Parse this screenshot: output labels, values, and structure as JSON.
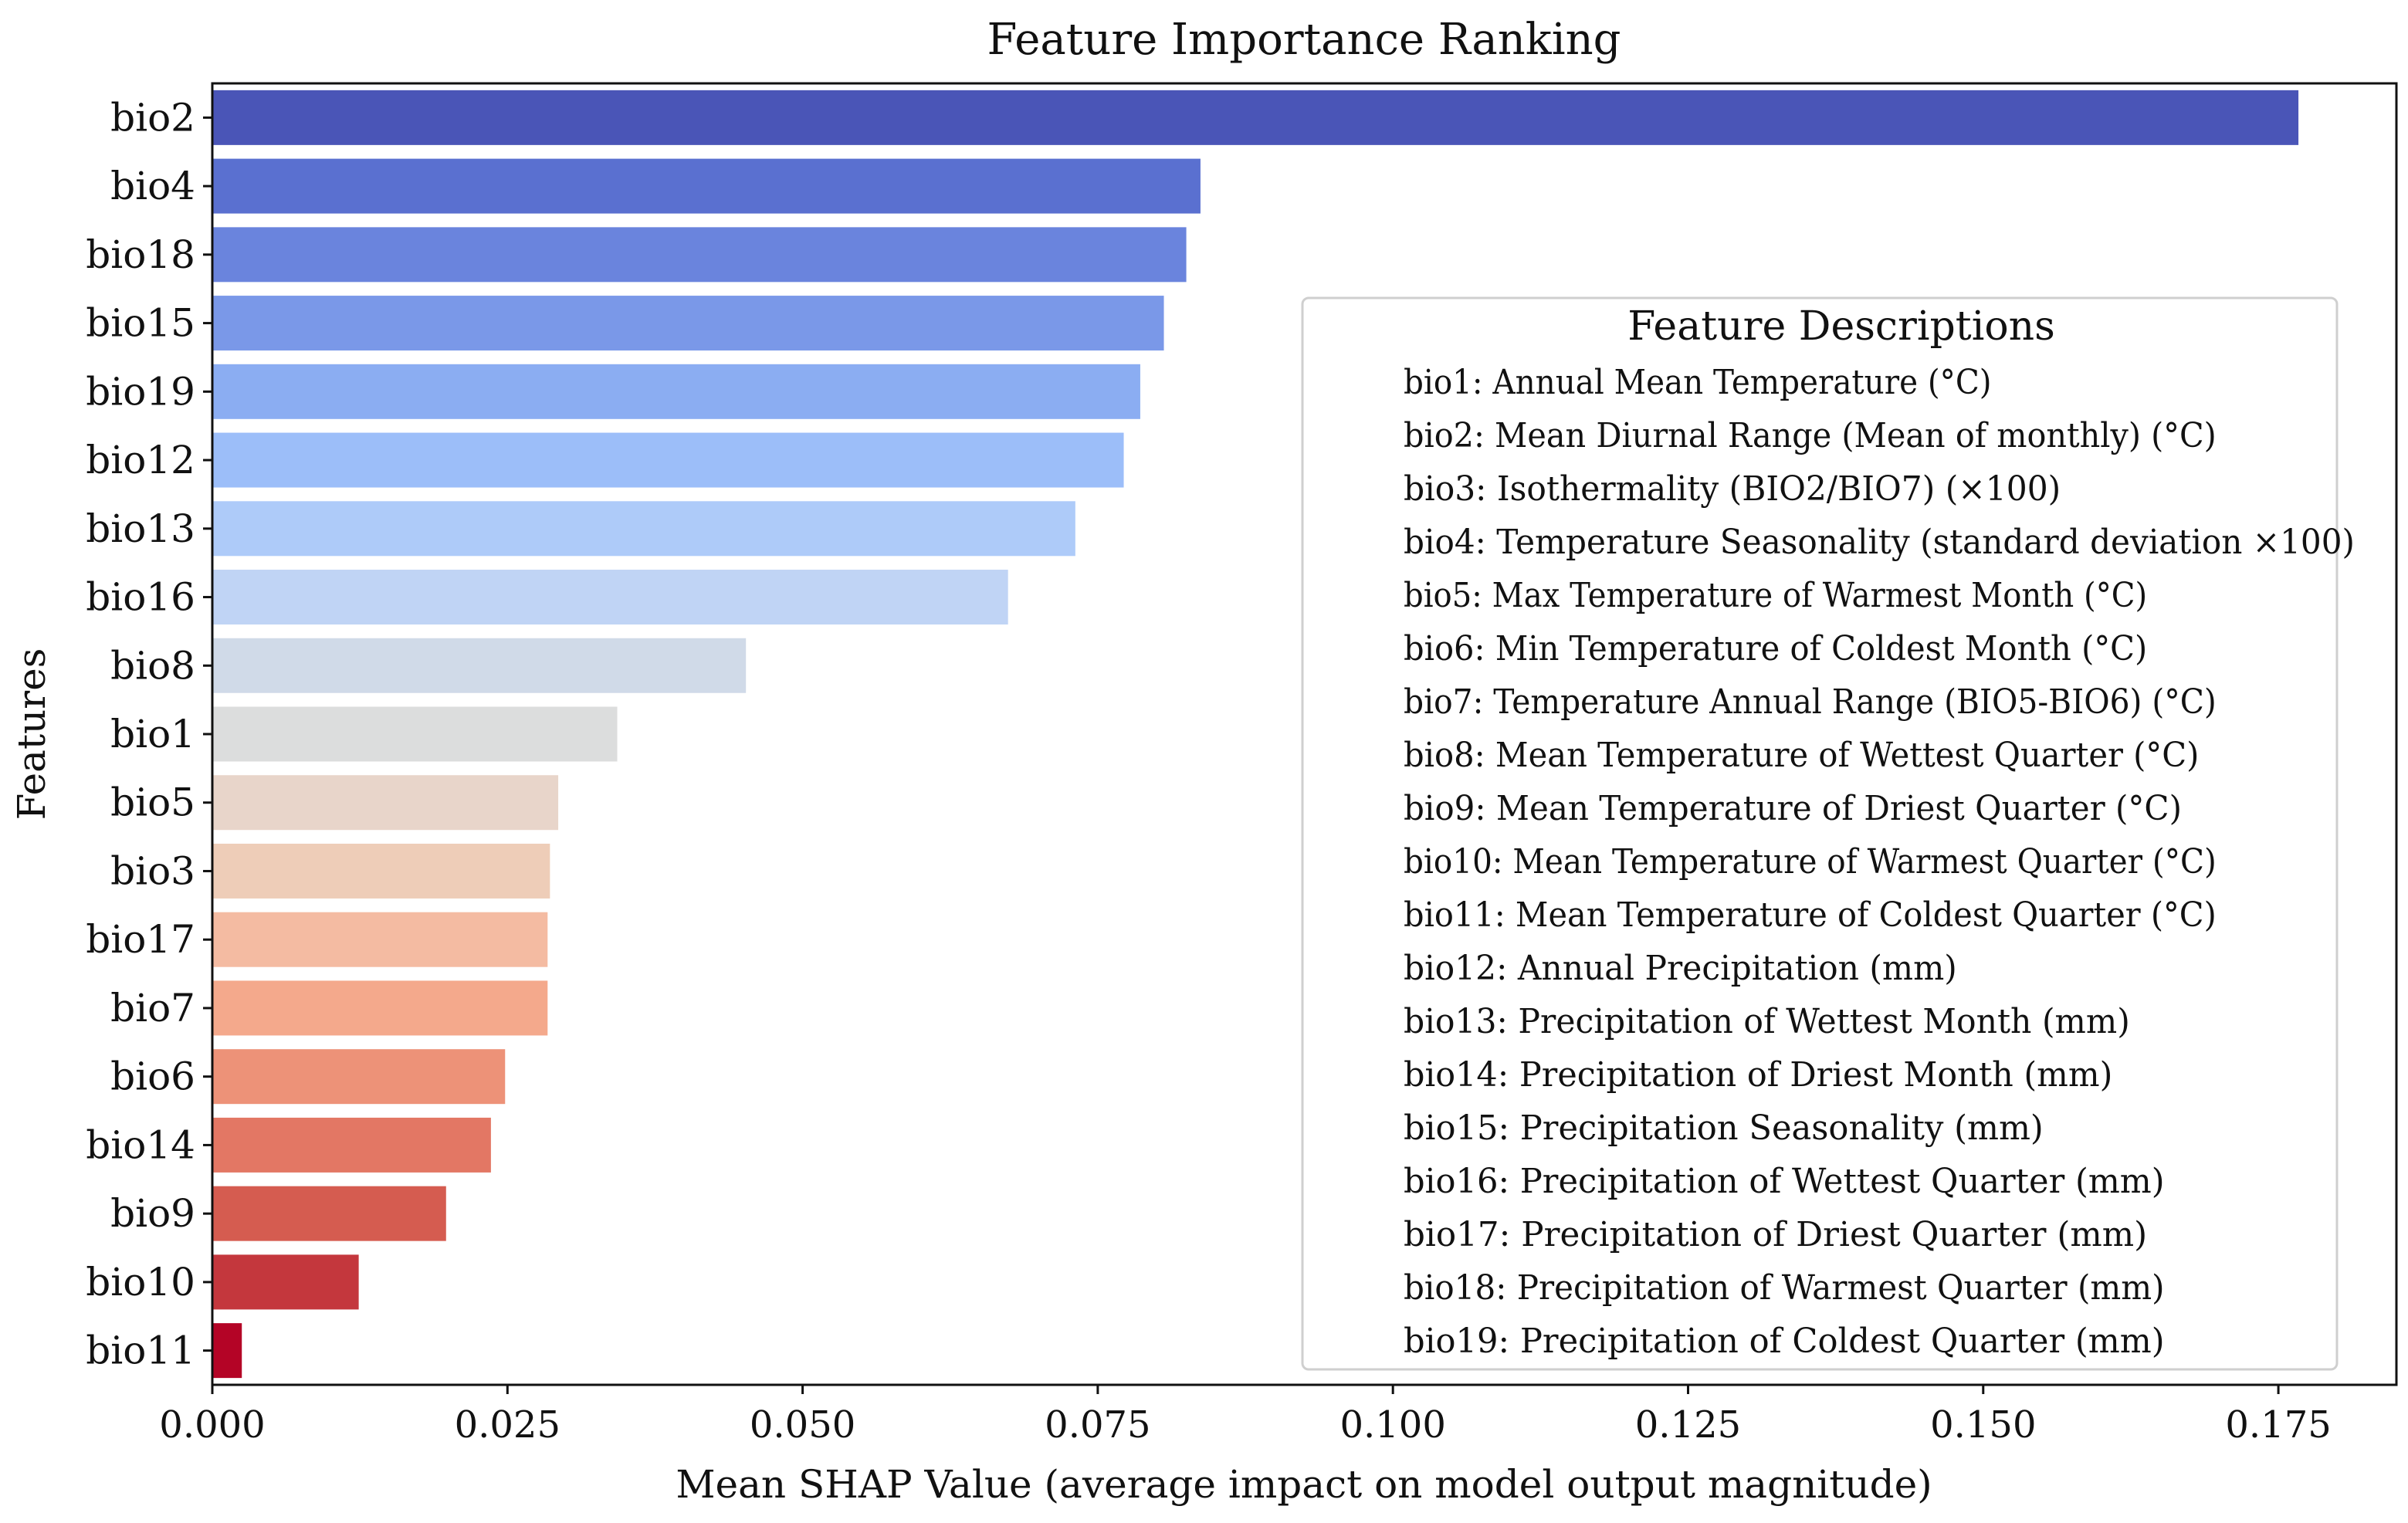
{
  "chart_data": {
    "type": "bar",
    "orientation": "horizontal",
    "title": "Feature Importance Ranking",
    "xlabel": "Mean SHAP Value (average impact on model output magnitude)",
    "ylabel": "Features",
    "xlim": [
      0,
      0.185
    ],
    "xticks": [
      0.0,
      0.025,
      0.05,
      0.075,
      0.1,
      0.125,
      0.15,
      0.175
    ],
    "xtick_labels": [
      "0.000",
      "0.025",
      "0.050",
      "0.075",
      "0.100",
      "0.125",
      "0.150",
      "0.175"
    ],
    "grid": false,
    "categories": [
      "bio2",
      "bio4",
      "bio18",
      "bio15",
      "bio19",
      "bio12",
      "bio13",
      "bio16",
      "bio8",
      "bio1",
      "bio5",
      "bio3",
      "bio17",
      "bio7",
      "bio6",
      "bio14",
      "bio9",
      "bio10",
      "bio11"
    ],
    "values": [
      0.1767,
      0.0837,
      0.0825,
      0.0806,
      0.0786,
      0.0772,
      0.0731,
      0.0674,
      0.0452,
      0.0343,
      0.0293,
      0.0286,
      0.0284,
      0.0284,
      0.0248,
      0.0236,
      0.0198,
      0.0124,
      0.0025
    ],
    "colors": [
      "#4a55b7",
      "#5a70d0",
      "#6a84dd",
      "#7a98e8",
      "#8badf2",
      "#9cbef9",
      "#aecbf9",
      "#c0d4f5",
      "#d0dae8",
      "#dcdddd",
      "#e8d5ca",
      "#eecdb8",
      "#f4bba2",
      "#f4a98c",
      "#ed9278",
      "#e37764",
      "#d55c50",
      "#c4373d",
      "#b40426"
    ],
    "legend": {
      "title": "Feature Descriptions",
      "placement": "center-right",
      "entries": [
        "bio1: Annual Mean Temperature (°C)",
        "bio2: Mean Diurnal Range (Mean of monthly) (°C)",
        "bio3: Isothermality (BIO2/BIO7) (×100)",
        "bio4: Temperature Seasonality (standard deviation ×100)",
        "bio5: Max Temperature of Warmest Month (°C)",
        "bio6: Min Temperature of Coldest Month (°C)",
        "bio7: Temperature Annual Range (BIO5-BIO6) (°C)",
        "bio8: Mean Temperature of Wettest Quarter (°C)",
        "bio9: Mean Temperature of Driest Quarter (°C)",
        "bio10: Mean Temperature of Warmest Quarter (°C)",
        "bio11: Mean Temperature of Coldest Quarter (°C)",
        "bio12: Annual Precipitation (mm)",
        "bio13: Precipitation of Wettest Month (mm)",
        "bio14: Precipitation of Driest Month (mm)",
        "bio15: Precipitation Seasonality (mm)",
        "bio16: Precipitation of Wettest Quarter (mm)",
        "bio17: Precipitation of Driest Quarter (mm)",
        "bio18: Precipitation of Warmest Quarter (mm)",
        "bio19: Precipitation of Coldest Quarter (mm)"
      ]
    }
  }
}
